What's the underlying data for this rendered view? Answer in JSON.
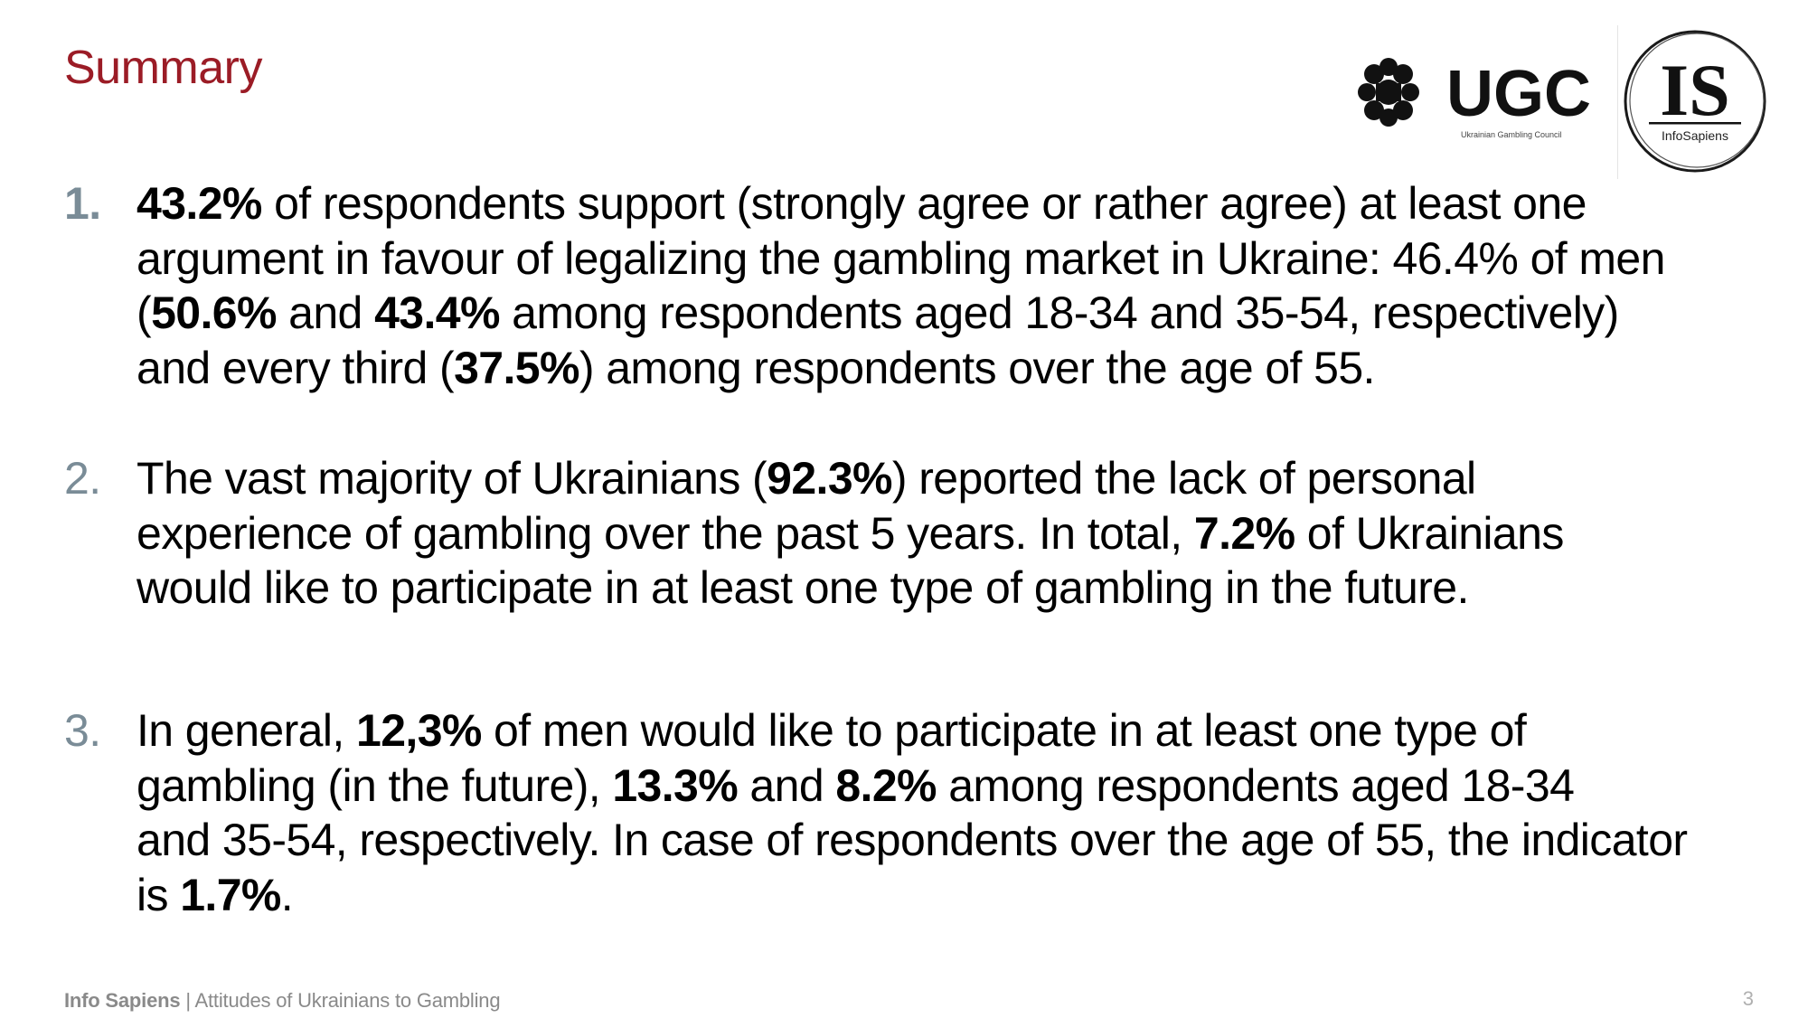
{
  "slide": {
    "title": "Summary",
    "page_number": "3"
  },
  "logos": {
    "ugc": {
      "wordmark": "UGC",
      "caption": "Ukrainian Gambling Council"
    },
    "infosapiens": {
      "monogram": "IS",
      "caption": "InfoSapiens"
    }
  },
  "items": [
    {
      "number": "1.",
      "lines": [
        [
          {
            "text": "43.2%",
            "bold": true
          },
          {
            "text": " of respondents support (strongly agree or rather agree) at least one",
            "bold": false
          }
        ],
        [
          {
            "text": "argument in favour of legalizing the gambling market in Ukraine: 46.4% of men",
            "bold": false
          }
        ],
        [
          {
            "text": "(",
            "bold": false
          },
          {
            "text": "50.6%",
            "bold": true
          },
          {
            "text": " and ",
            "bold": false
          },
          {
            "text": "43.4%",
            "bold": true
          },
          {
            "text": " among respondents aged 18-34 and 35-54, respectively)",
            "bold": false
          }
        ],
        [
          {
            "text": "and every third (",
            "bold": false
          },
          {
            "text": "37.5%",
            "bold": true
          },
          {
            "text": ") among respondents over the age of 55.",
            "bold": false
          }
        ]
      ]
    },
    {
      "number": "2.",
      "lines": [
        [
          {
            "text": "The vast majority of Ukrainians (",
            "bold": false
          },
          {
            "text": "92.3%",
            "bold": true
          },
          {
            "text": ") reported the lack of personal",
            "bold": false
          }
        ],
        [
          {
            "text": "experience of gambling over the past 5 years. In total, ",
            "bold": false
          },
          {
            "text": "7.2%",
            "bold": true
          },
          {
            "text": " of Ukrainians",
            "bold": false
          }
        ],
        [
          {
            "text": "would like to participate in at least one type of gambling in the future.",
            "bold": false
          }
        ]
      ]
    },
    {
      "number": "3.",
      "lines": [
        [
          {
            "text": "In general, ",
            "bold": false
          },
          {
            "text": "12,3%",
            "bold": true
          },
          {
            "text": " of men would like to participate in at least one type of",
            "bold": false
          }
        ],
        [
          {
            "text": "gambling (in the future), ",
            "bold": false
          },
          {
            "text": "13.3%",
            "bold": true
          },
          {
            "text": " and ",
            "bold": false
          },
          {
            "text": "8.2%",
            "bold": true
          },
          {
            "text": "  among respondents aged 18-34",
            "bold": false
          }
        ],
        [
          {
            "text": "and 35-54, respectively. In case of respondents over the age of 55, the indicator",
            "bold": false
          }
        ],
        [
          {
            "text": "is ",
            "bold": false
          },
          {
            "text": "1.7%",
            "bold": true
          },
          {
            "text": ".",
            "bold": false
          }
        ]
      ]
    }
  ],
  "footer": {
    "organization": "Info Sapiens",
    "separator": " | ",
    "report_title": "Attitudes of Ukrainians to Gambling"
  },
  "colors": {
    "title": "#9b1c26",
    "list_number": "#7a8c97",
    "footer_text": "#8a8a8a",
    "page_number": "#b0b0b0"
  }
}
